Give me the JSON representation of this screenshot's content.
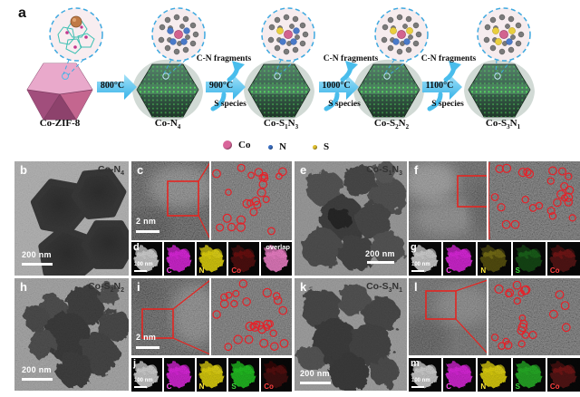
{
  "panel_a": {
    "label": "a",
    "samples": [
      {
        "p1": "Co-ZIF-8",
        "s1": "",
        "p2": "",
        "s2": ""
      },
      {
        "p1": "Co-N",
        "s1": "4",
        "p2": "",
        "s2": ""
      },
      {
        "p1": "Co-S",
        "s1": "1",
        "p2": "N",
        "s2": "3"
      },
      {
        "p1": "Co-S",
        "s1": "2",
        "p2": "N",
        "s2": "2"
      },
      {
        "p1": "Co-S",
        "s1": "3",
        "p2": "N",
        "s2": "1"
      }
    ],
    "arrows": [
      {
        "temp": "800°C",
        "top": "",
        "bottom": ""
      },
      {
        "temp": "900°C",
        "top": "C-N fragments",
        "bottom": "S species"
      },
      {
        "temp": "1000°C",
        "top": "C-N fragments",
        "bottom": "S species"
      },
      {
        "temp": "1100°C",
        "top": "C-N fragments",
        "bottom": "S species"
      }
    ],
    "legend": [
      {
        "label": "Co",
        "color": "#d9659a"
      },
      {
        "label": "N",
        "color": "#3a6fc4"
      },
      {
        "label": "S",
        "color": "#e0c030"
      }
    ]
  },
  "panels": {
    "b": {
      "letter": "b",
      "scalebar": "200 nm"
    },
    "c": {
      "letter": "c",
      "scalebar": "2 nm",
      "atom_circles": 24
    },
    "d": {
      "letter": "d",
      "scalebar": "100 nm"
    },
    "e": {
      "letter": "e",
      "scalebar": "200 nm"
    },
    "f": {
      "letter": "f",
      "atom_circles": 26
    },
    "g": {
      "letter": "g",
      "scalebar": "100 nm"
    },
    "h": {
      "letter": "h",
      "scalebar": "200 nm"
    },
    "i": {
      "letter": "i",
      "scalebar": "2 nm",
      "atom_circles": 28
    },
    "j": {
      "letter": "j",
      "scalebar": "100 nm"
    },
    "k": {
      "letter": "k",
      "scalebar": "200 nm"
    },
    "l": {
      "letter": "l",
      "atom_circles": 23
    },
    "m": {
      "letter": "m",
      "scalebar": "100 nm"
    }
  },
  "eds": {
    "d": {
      "maps": [
        {
          "label": "C",
          "color": "#e326e3",
          "label_color": "#ff50f0",
          "bright": true
        },
        {
          "label": "N",
          "color": "#e8da12",
          "label_color": "#ffe93c",
          "bright": true
        },
        {
          "label": "Co",
          "color": "#b41616",
          "label_color": "#ff4040",
          "bright": false
        },
        {
          "label": "overlap",
          "color": "#f583cd",
          "label_color": "#ffffff",
          "bright": true,
          "label_pos": "top-right"
        }
      ]
    },
    "g": {
      "maps": [
        {
          "label": "C",
          "color": "#e326e3",
          "label_color": "#ff50f0",
          "bright": true
        },
        {
          "label": "N",
          "color": "#c7b81d",
          "label_color": "#ffe93c",
          "bright": false
        },
        {
          "label": "S",
          "color": "#2aa82a",
          "label_color": "#3cdc3c",
          "bright": false
        },
        {
          "label": "Co",
          "color": "#c42222",
          "label_color": "#ff4040",
          "bright": false
        }
      ]
    },
    "j": {
      "maps": [
        {
          "label": "C",
          "color": "#e326e3",
          "label_color": "#ff50f0",
          "bright": true
        },
        {
          "label": "N",
          "color": "#e8da12",
          "label_color": "#ffe93c",
          "bright": true
        },
        {
          "label": "S",
          "color": "#22c822",
          "label_color": "#3cdc3c",
          "bright": true
        },
        {
          "label": "Co",
          "color": "#8e1212",
          "label_color": "#ff4040",
          "bright": false
        }
      ]
    },
    "m": {
      "maps": [
        {
          "label": "C",
          "color": "#e326e3",
          "label_color": "#ff50f0",
          "bright": true
        },
        {
          "label": "N",
          "color": "#e8da12",
          "label_color": "#ffe93c",
          "bright": true
        },
        {
          "label": "S",
          "color": "#28b428",
          "label_color": "#3cdc3c",
          "bright": true
        },
        {
          "label": "Co",
          "color": "#c42222",
          "label_color": "#ff4040",
          "bright": false
        }
      ]
    }
  },
  "colors": {
    "annotation_red": "#e52521",
    "arrow_blue": "#49bdec",
    "inset_border_blue": "#3fa9e0"
  }
}
